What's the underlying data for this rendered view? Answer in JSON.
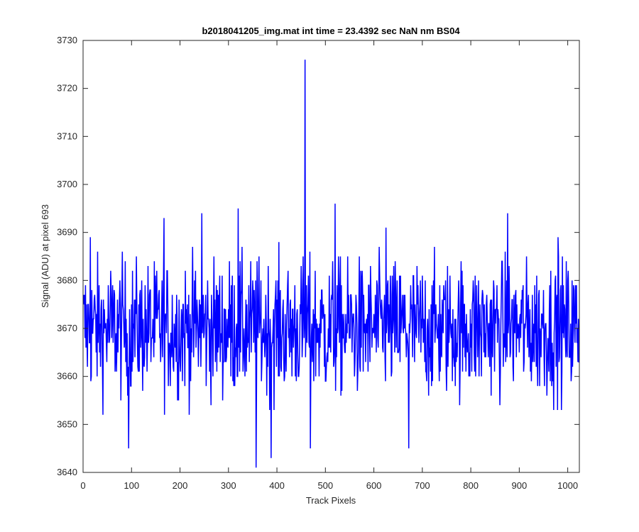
{
  "chart_data": {
    "type": "line",
    "title": "b2018041205_img.mat int time = 23.4392 sec  NaN nm BS04",
    "xlabel": "Track Pixels",
    "ylabel": "Signal (ADU) at pixel 693",
    "xlim": [
      0,
      1024
    ],
    "ylim": [
      3640,
      3730
    ],
    "xticks": [
      0,
      100,
      200,
      300,
      400,
      500,
      600,
      700,
      800,
      900,
      1000
    ],
    "yticks": [
      3640,
      3650,
      3660,
      3670,
      3680,
      3690,
      3700,
      3710,
      3720,
      3730
    ],
    "grid": false,
    "series": [
      {
        "color": "#0000ff",
        "x_start": 1,
        "x_step": 1,
        "noise_model": {
          "mean": 3670,
          "amplitude": 10,
          "count": 1024
        },
        "highlighted_points": [
          {
            "x": 458,
            "y": 3726
          },
          {
            "x": 357,
            "y": 3641
          },
          {
            "x": 94,
            "y": 3645
          },
          {
            "x": 388,
            "y": 3643
          },
          {
            "x": 469,
            "y": 3645
          },
          {
            "x": 672,
            "y": 3645
          },
          {
            "x": 520,
            "y": 3696
          },
          {
            "x": 320,
            "y": 3695
          },
          {
            "x": 245,
            "y": 3694
          },
          {
            "x": 876,
            "y": 3694
          },
          {
            "x": 167,
            "y": 3693
          },
          {
            "x": 625,
            "y": 3691
          },
          {
            "x": 15,
            "y": 3689
          },
          {
            "x": 980,
            "y": 3689
          }
        ]
      }
    ]
  }
}
